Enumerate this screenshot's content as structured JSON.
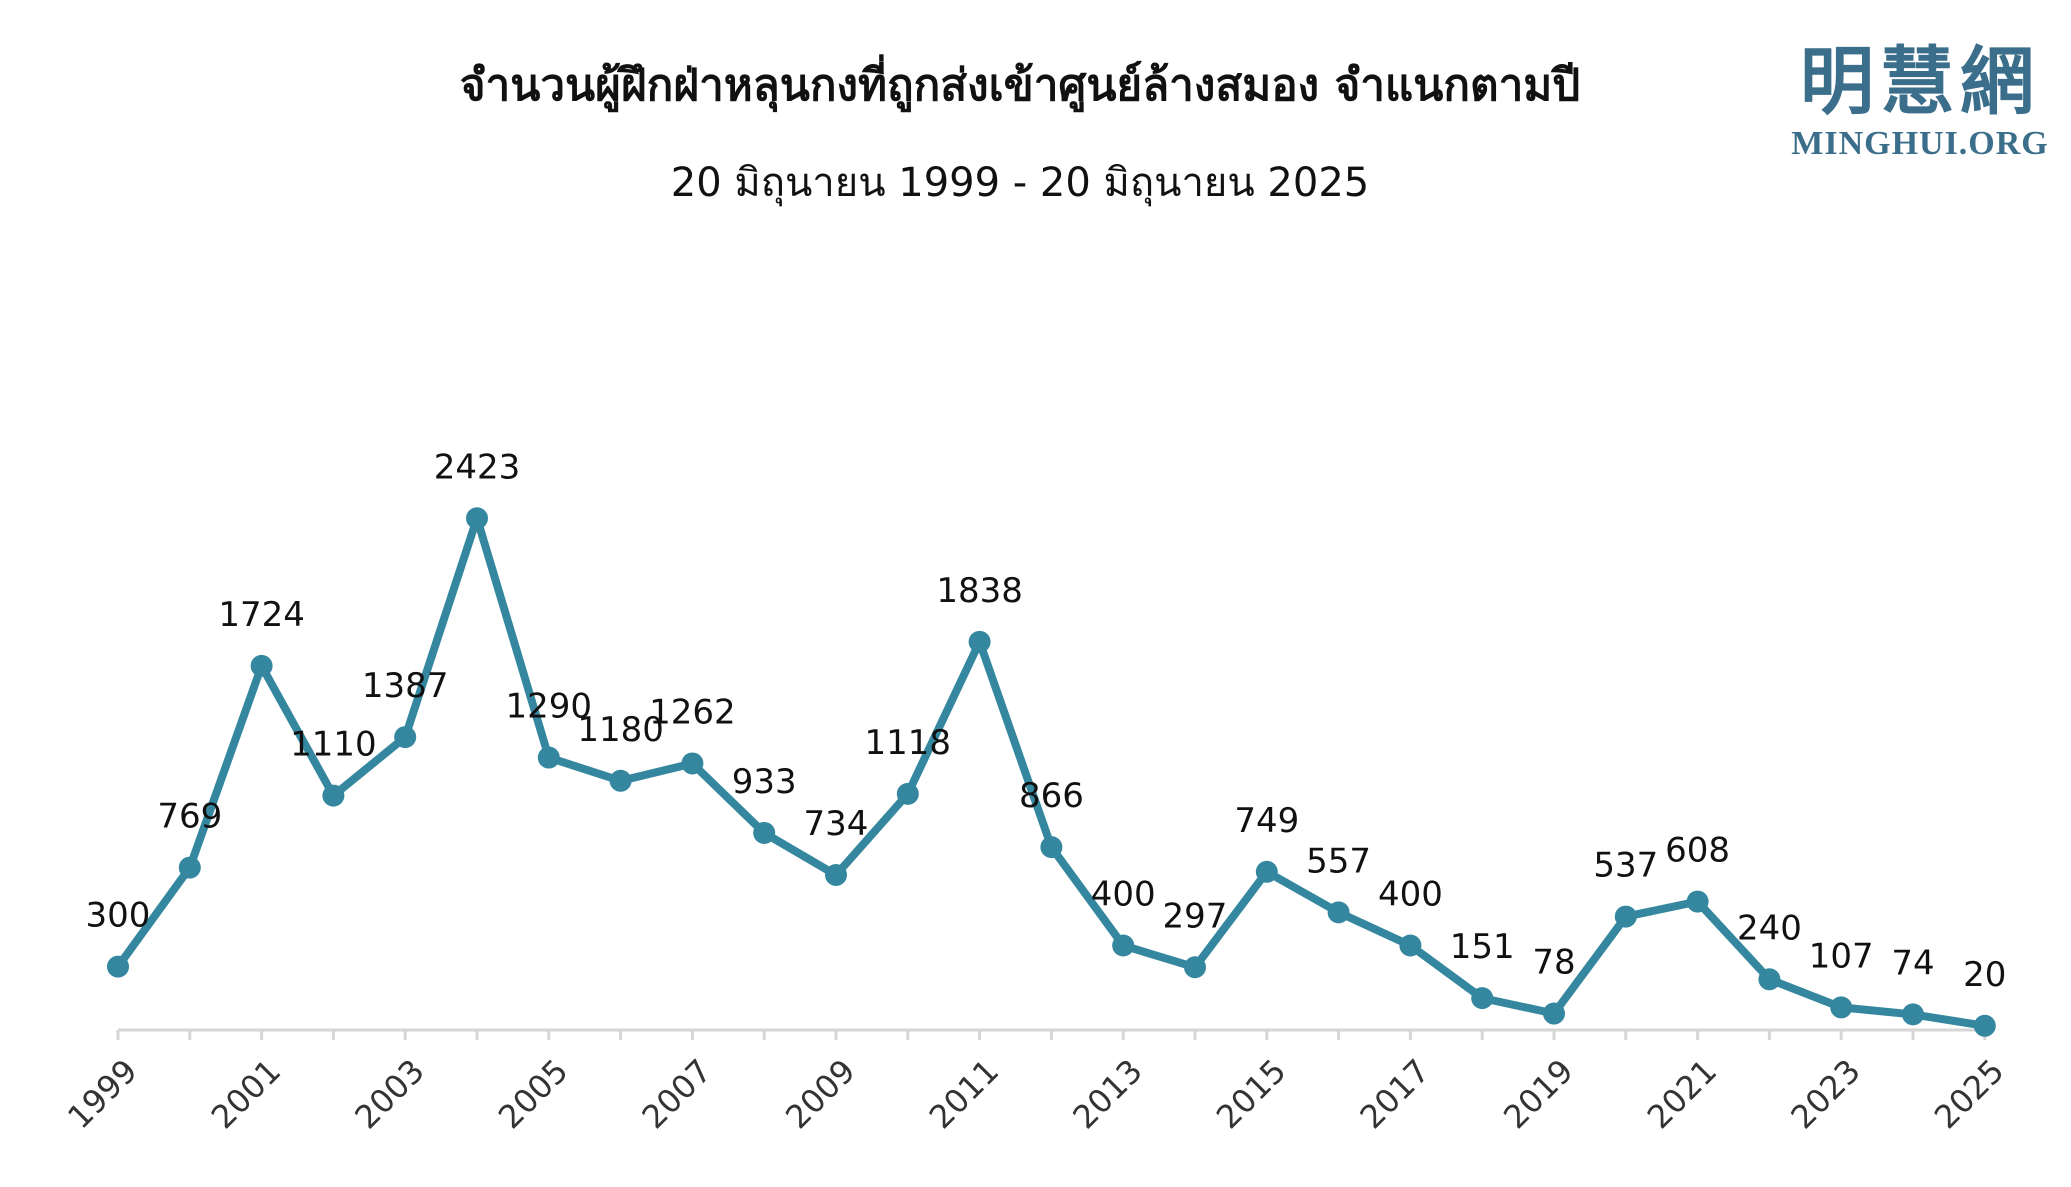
{
  "header": {
    "title": "จำนวนผู้ฝึกฝ่าหลุนกงที่ถูกส่งเข้าศูนย์ล้างสมอง จำแนกตามปี",
    "subtitle": "20 มิถุนายน 1999 - 20 มิถุนายน 2025"
  },
  "logo": {
    "cjk": "明慧網",
    "org": "MINGHUI.ORG",
    "color": "#3b6e8a"
  },
  "chart_data": {
    "type": "line",
    "title": "จำนวนผู้ฝึกฝ่าหลุนกงที่ถูกส่งเข้าศูนย์ล้างสมอง จำแนกตามปี",
    "subtitle": "20 มิถุนายน 1999 - 20 มิถุนายน 2025",
    "x": [
      1999,
      2000,
      2001,
      2002,
      2003,
      2004,
      2005,
      2006,
      2007,
      2008,
      2009,
      2010,
      2011,
      2012,
      2013,
      2014,
      2015,
      2016,
      2017,
      2018,
      2019,
      2020,
      2021,
      2022,
      2023,
      2024,
      2025
    ],
    "values": [
      300,
      769,
      1724,
      1110,
      1387,
      2423,
      1290,
      1180,
      1262,
      933,
      734,
      1118,
      1838,
      866,
      400,
      297,
      749,
      557,
      400,
      151,
      78,
      537,
      608,
      240,
      107,
      74,
      20
    ],
    "x_tick_labels": [
      "1999",
      "2001",
      "2003",
      "2005",
      "2007",
      "2009",
      "2011",
      "2013",
      "2015",
      "2017",
      "2019",
      "2021",
      "2023",
      "2025"
    ],
    "data_labels": [
      "300",
      "769",
      "1724",
      "1110",
      "1387",
      "2423",
      "1290",
      "1180",
      "1262",
      "933",
      "734",
      "1118",
      "1838",
      "866",
      "400",
      "297",
      "749",
      "557",
      "400",
      "151",
      "78",
      "537",
      "608",
      "240",
      "107",
      "74",
      "20"
    ],
    "ylim": [
      0,
      2500
    ],
    "grid": false,
    "legend": "none",
    "line_color": "#34879f",
    "axis_color": "#d6d6d6"
  }
}
